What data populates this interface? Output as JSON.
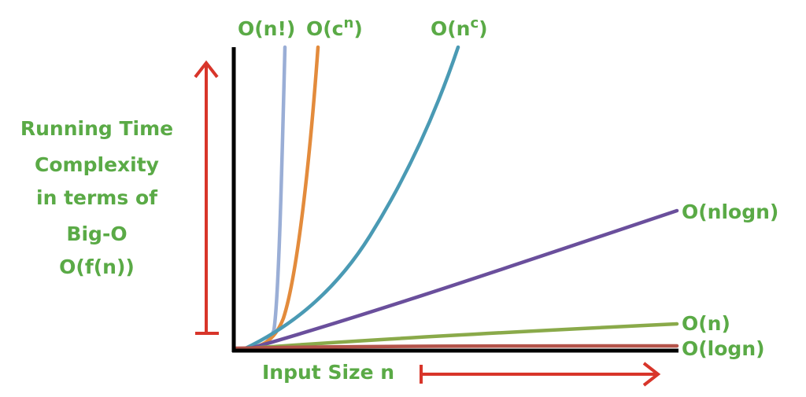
{
  "chart_data": {
    "type": "line",
    "title": "",
    "xlabel": "Input Size n",
    "ylabel_lines": [
      "Running Time",
      "Complexity",
      "in terms of",
      "Big-O",
      "O(f(n))"
    ],
    "grid": false,
    "series": [
      {
        "name": "O(n!)",
        "label_base": "O(n!)",
        "label_sup": "",
        "color": "#9aaed6"
      },
      {
        "name": "O(cⁿ)",
        "label_base": "O(c",
        "label_sup": "n",
        "label_close": ")",
        "color": "#e38b3c"
      },
      {
        "name": "O(nᶜ)",
        "label_base": "O(n",
        "label_sup": "c",
        "label_close": ")",
        "color": "#4a9ab4"
      },
      {
        "name": "O(nlogn)",
        "label_base": "O(nlogn)",
        "label_sup": "",
        "color": "#6a4f9c"
      },
      {
        "name": "O(n)",
        "label_base": "O(n)",
        "label_sup": "",
        "color": "#8aaa4a"
      },
      {
        "name": "O(logn)",
        "label_base": "O(logn)",
        "label_sup": "",
        "color": "#b4534a"
      }
    ]
  },
  "colors": {
    "label_green": "#5aaa46",
    "arrow_red": "#d8352a",
    "axis": "#000000"
  }
}
